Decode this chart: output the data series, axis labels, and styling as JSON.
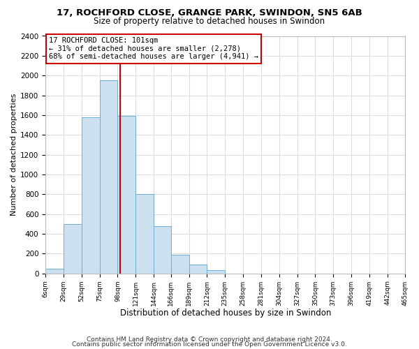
{
  "title": "17, ROCHFORD CLOSE, GRANGE PARK, SWINDON, SN5 6AB",
  "subtitle": "Size of property relative to detached houses in Swindon",
  "xlabel": "Distribution of detached houses by size in Swindon",
  "ylabel": "Number of detached properties",
  "bin_edges": [
    6,
    29,
    52,
    75,
    98,
    121,
    144,
    166,
    189,
    212,
    235,
    258,
    281,
    304,
    327,
    350,
    373,
    396,
    419,
    442,
    465
  ],
  "bin_labels": [
    "6sqm",
    "29sqm",
    "52sqm",
    "75sqm",
    "98sqm",
    "121sqm",
    "144sqm",
    "166sqm",
    "189sqm",
    "212sqm",
    "235sqm",
    "258sqm",
    "281sqm",
    "304sqm",
    "327sqm",
    "350sqm",
    "373sqm",
    "396sqm",
    "419sqm",
    "442sqm",
    "465sqm"
  ],
  "counts": [
    50,
    500,
    1580,
    1950,
    1590,
    800,
    480,
    190,
    90,
    30,
    0,
    0,
    0,
    0,
    0,
    0,
    0,
    0,
    0,
    0
  ],
  "bar_color": "#cce0f0",
  "bar_edgecolor": "#6baed6",
  "vline_x": 101,
  "vline_color": "#cc0000",
  "annotation_title": "17 ROCHFORD CLOSE: 101sqm",
  "annotation_line1": "← 31% of detached houses are smaller (2,278)",
  "annotation_line2": "68% of semi-detached houses are larger (4,941) →",
  "annotation_box_edgecolor": "#cc0000",
  "ylim": [
    0,
    2400
  ],
  "yticks": [
    0,
    200,
    400,
    600,
    800,
    1000,
    1200,
    1400,
    1600,
    1800,
    2000,
    2200,
    2400
  ],
  "footnote1": "Contains HM Land Registry data © Crown copyright and database right 2024.",
  "footnote2": "Contains public sector information licensed under the Open Government Licence v3.0.",
  "background_color": "#ffffff",
  "grid_color": "#dddddd"
}
